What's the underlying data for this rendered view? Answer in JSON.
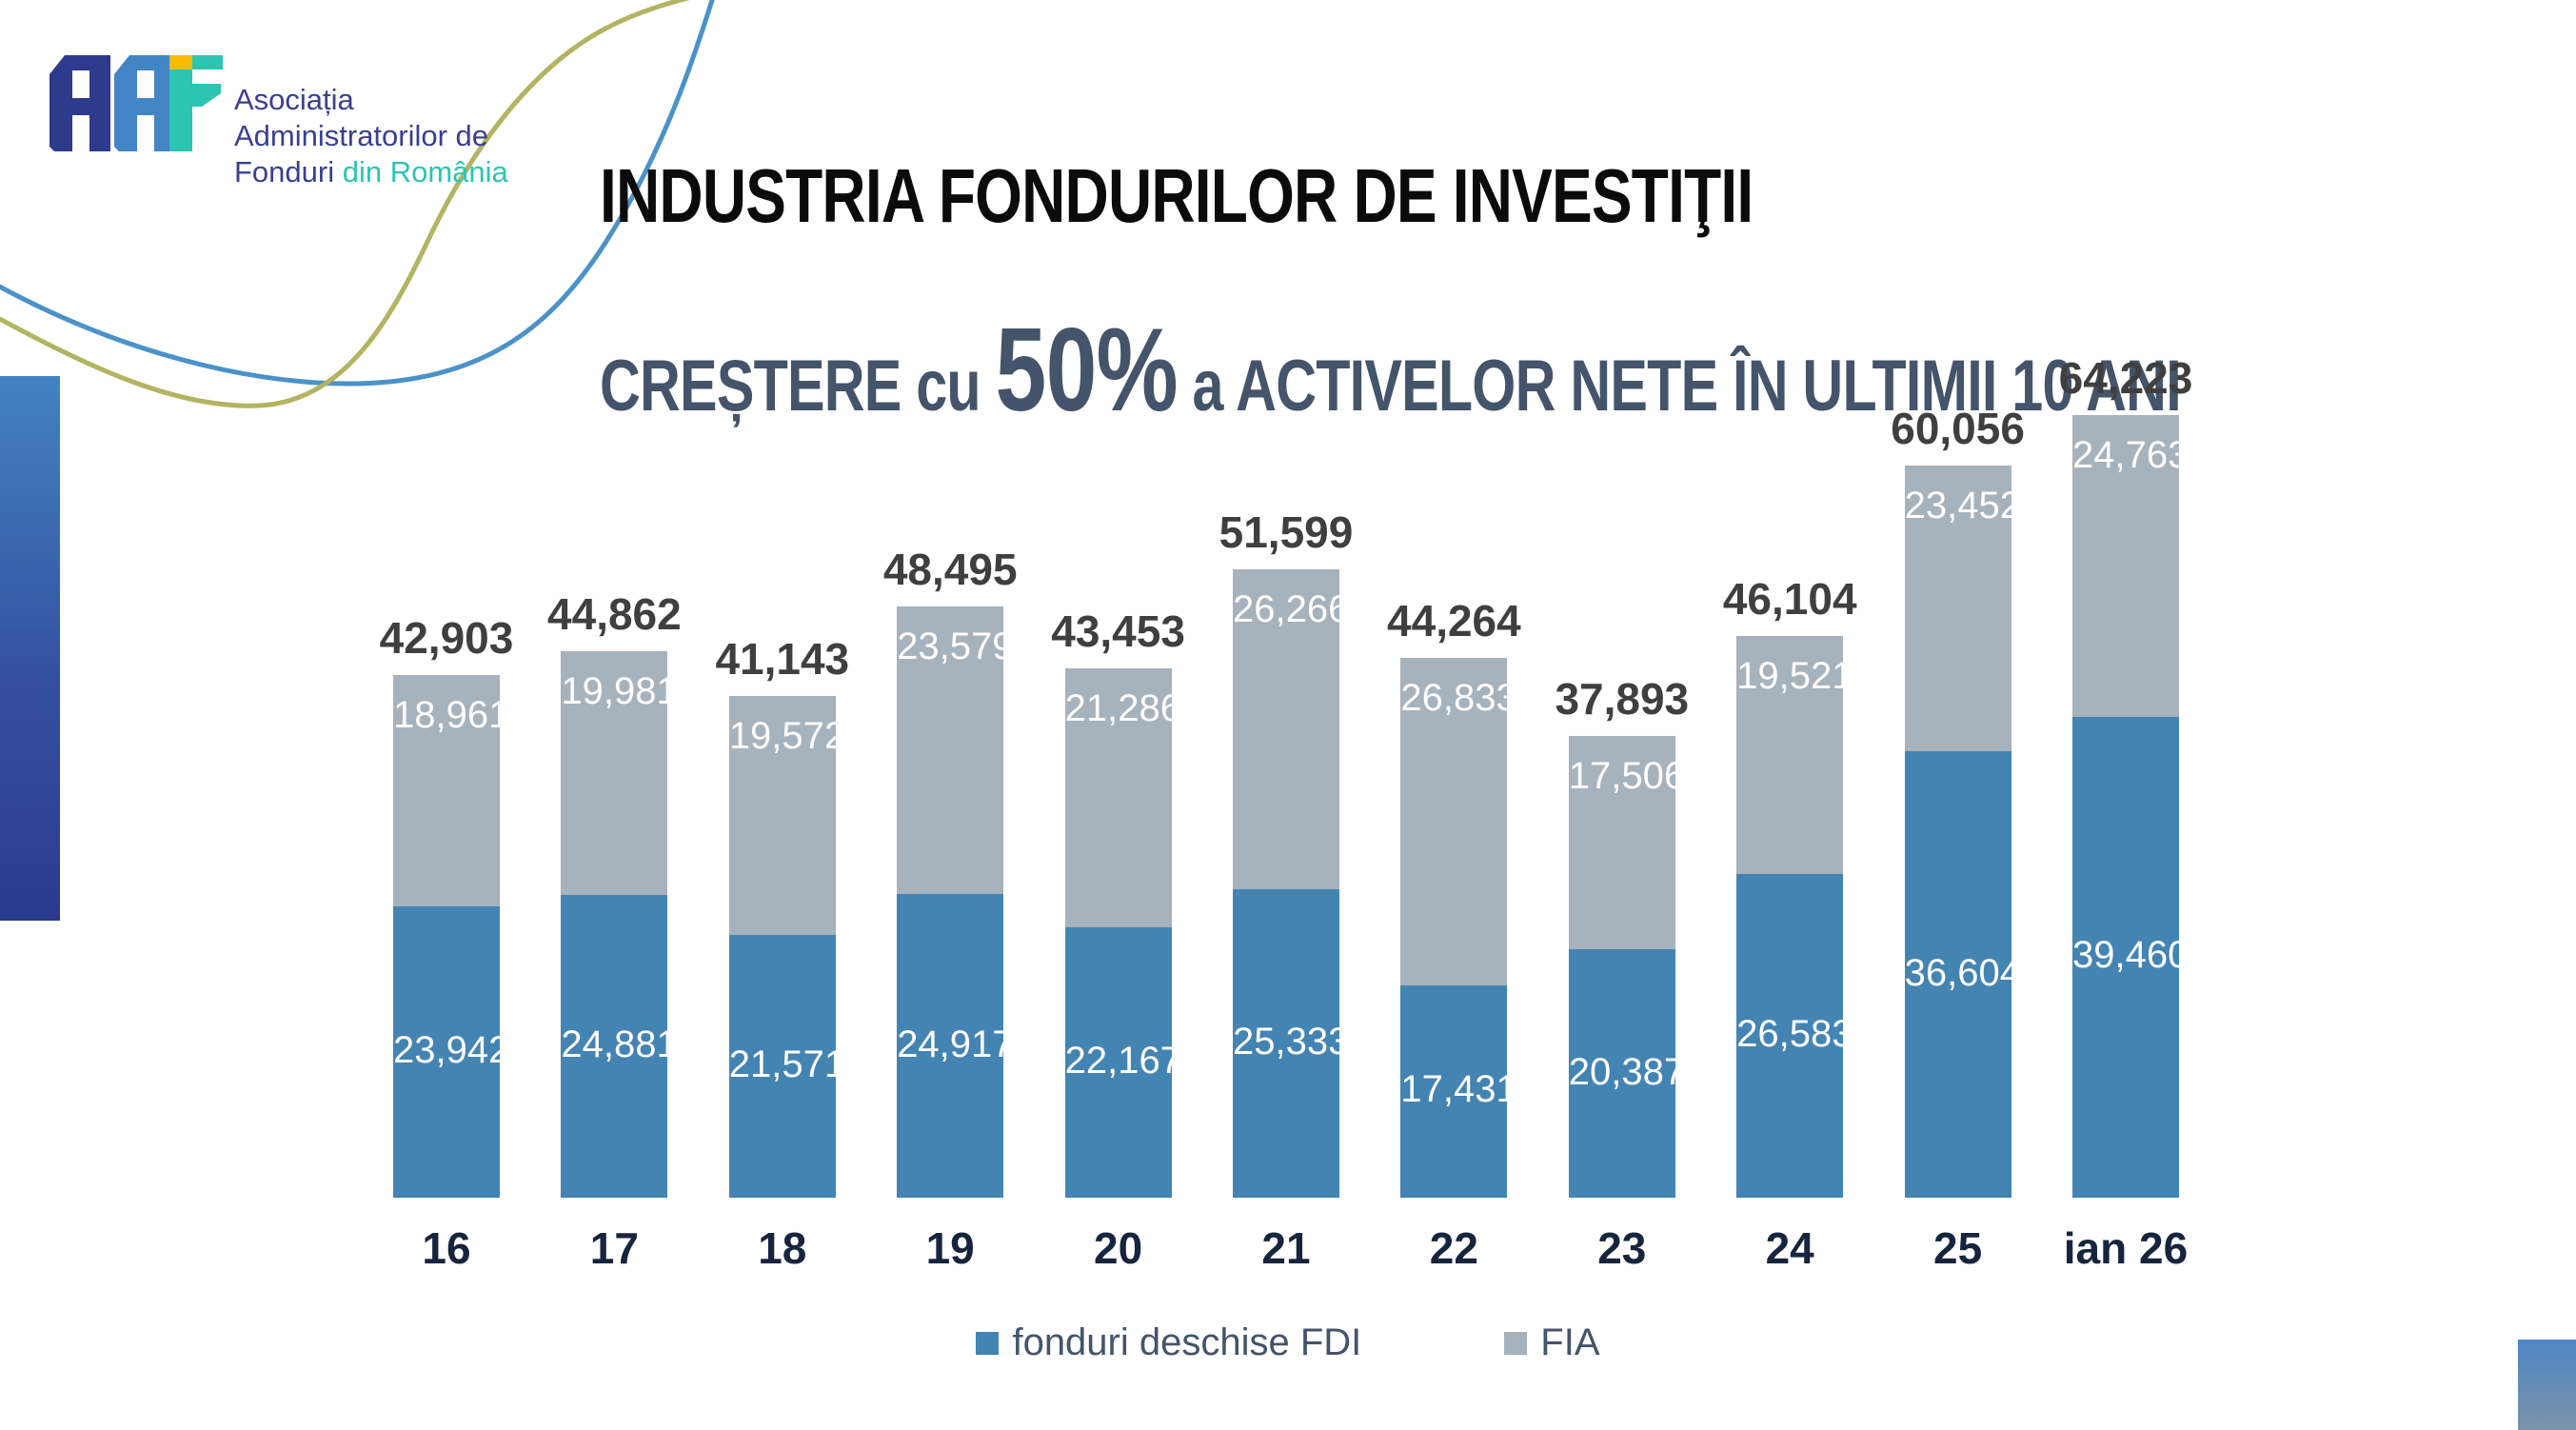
{
  "logo": {
    "line1": "Asociația",
    "line2": "Administratorilor de",
    "line3_part1": "Fonduri ",
    "line3_part2": "din România"
  },
  "title": {
    "line1": "INDUSTRIA FONDURILOR DE INVESTIŢII",
    "line2_pre": "CREȘTERE cu ",
    "line2_big": "50%",
    "line2_post": " a ACTIVELOR NETE ÎN ULTIMII 10 ANI"
  },
  "chart_data": {
    "type": "bar",
    "stacked": true,
    "categories": [
      "16",
      "17",
      "18",
      "19",
      "20",
      "21",
      "22",
      "23",
      "24",
      "25",
      "ian 26"
    ],
    "series": [
      {
        "name": "fonduri deschise FDI",
        "color": "#4484B3",
        "values": [
          23942,
          24881,
          21571,
          24917,
          22167,
          25333,
          17431,
          20387,
          26583,
          36604,
          39460
        ]
      },
      {
        "name": "FIA",
        "color": "#A6B2BC",
        "values": [
          18961,
          19981,
          19572,
          23579,
          21286,
          26266,
          26833,
          17506,
          19521,
          23452,
          24763
        ]
      }
    ],
    "totals": [
      42903,
      44862,
      41143,
      48495,
      43453,
      51599,
      44264,
      37893,
      46104,
      60056,
      64223
    ],
    "title": "INDUSTRIA FONDURILOR DE INVESTIŢII — CREȘTERE cu 50% a ACTIVELOR NETE ÎN ULTIMII 10 ANI",
    "xlabel": "",
    "ylabel": "",
    "legend_position": "bottom",
    "grid": false,
    "value_labels": true
  },
  "colors": {
    "fdi_bar": "#4484B3",
    "fia_bar": "#A6B2BC",
    "total_label": "#3F3F3F",
    "axis_label": "#17243D",
    "legend_text": "#44546A",
    "title2_text": "#44546A",
    "curve_blue": "#4B92C8",
    "curve_olive": "#B3B362",
    "logo_indigo": "#2E3A8C",
    "logo_blue": "#4285C5",
    "logo_teal": "#2CC5B2",
    "logo_yellow": "#F8BC00"
  }
}
